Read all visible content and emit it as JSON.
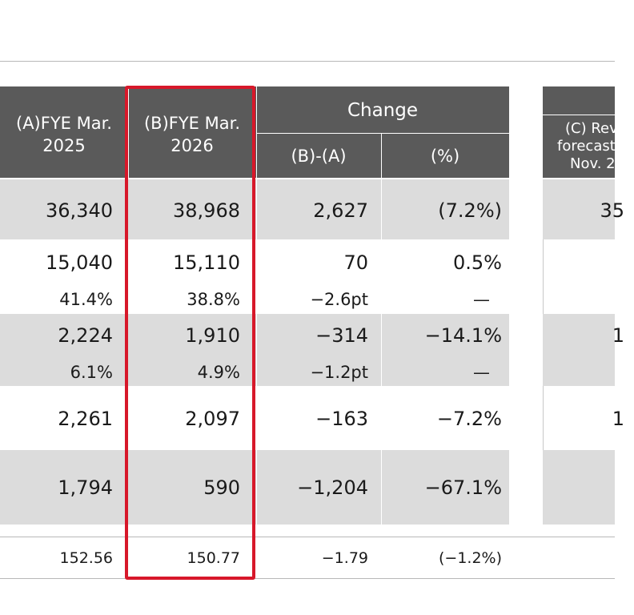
{
  "header": {
    "col_a": "(A)FYE Mar. 2025",
    "col_a_line1": "(A)FYE Mar.",
    "col_a_line2": "2025",
    "col_b_line1": "(B)FYE Mar.",
    "col_b_line2": "2026",
    "change_title": "Change",
    "change_diff": "(B)-(A)",
    "change_pct": "(%)",
    "col_c_line1": "(C) Rev",
    "col_c_line2": "forecasts",
    "col_c_line3": "Nov. 2"
  },
  "rows": [
    {
      "a": "36,340",
      "b": "38,968",
      "diff": "2,627",
      "pct": "(7.2%)",
      "c": "35"
    },
    {
      "a": "15,040",
      "b": "15,110",
      "diff": "70",
      "pct": "0.5%",
      "c": ""
    },
    {
      "a": "41.4%",
      "b": "38.8%",
      "diff": "−2.6pt",
      "pct": "—",
      "c": ""
    },
    {
      "a": "2,224",
      "b": "1,910",
      "diff": "−314",
      "pct": "−14.1%",
      "c": "1"
    },
    {
      "a": "6.1%",
      "b": "4.9%",
      "diff": "−1.2pt",
      "pct": "—",
      "c": ""
    },
    {
      "a": "2,261",
      "b": "2,097",
      "diff": "−163",
      "pct": "−7.2%",
      "c": "1"
    },
    {
      "a": "1,794",
      "b": "590",
      "diff": "−1,204",
      "pct": "−67.1%",
      "c": ""
    }
  ],
  "footer": {
    "a": "152.56",
    "b": "150.77",
    "diff": "−1.79",
    "pct": "(−1.2%)"
  },
  "colors": {
    "header_bg": "#5a5a5a",
    "row_gray": "#dcdcdc",
    "highlight_border": "#d7182a"
  }
}
